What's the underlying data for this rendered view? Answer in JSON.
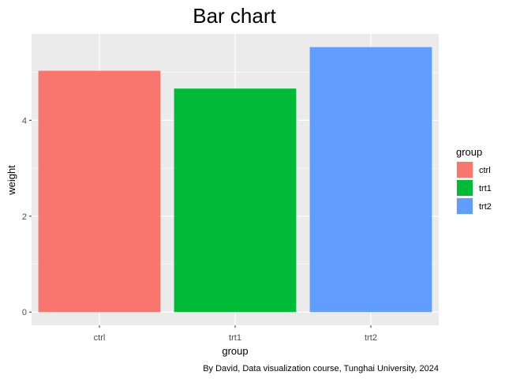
{
  "chart_data": {
    "type": "bar",
    "title": "Bar chart",
    "xlabel": "group",
    "ylabel": "weight",
    "categories": [
      "ctrl",
      "trt1",
      "trt2"
    ],
    "values": [
      5.032,
      4.661,
      5.526
    ],
    "colors": [
      "#F8766D",
      "#00BA38",
      "#619CFF"
    ],
    "ylim": [
      -0.276,
      5.8
    ],
    "y_ticks": [
      0,
      2,
      4
    ],
    "grid": true,
    "panel_background": "#EBEBEB",
    "legend": {
      "title": "group",
      "position": "right",
      "entries": [
        "ctrl",
        "trt1",
        "trt2"
      ]
    },
    "caption": "By David, Data visualization course, Tunghai University, 2024"
  }
}
